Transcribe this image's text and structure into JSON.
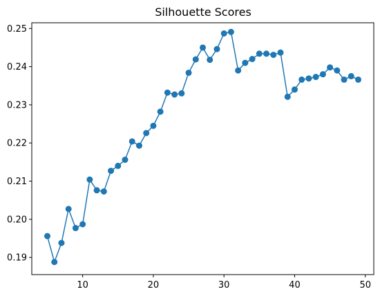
{
  "chart_data": {
    "type": "line",
    "title": "Silhouette Scores",
    "xlabel": "",
    "ylabel": "",
    "xlim": [
      2.8,
      51.2
    ],
    "ylim": [
      0.1855,
      0.2515
    ],
    "xticks": [
      10,
      20,
      30,
      40,
      50
    ],
    "yticks": [
      0.19,
      0.2,
      0.21,
      0.22,
      0.23,
      0.24,
      0.25
    ],
    "ytick_labels": [
      "0.19",
      "0.20",
      "0.21",
      "0.22",
      "0.23",
      "0.24",
      "0.25"
    ],
    "grid": false,
    "marker": "circle",
    "color": "#1f77b4",
    "series": [
      {
        "x": [
          5,
          6,
          7,
          8,
          9,
          10,
          11,
          12,
          13,
          14,
          15,
          16,
          17,
          18,
          19,
          20,
          21,
          22,
          23,
          24,
          25,
          26,
          27,
          28,
          29,
          30,
          31,
          32,
          33,
          34,
          35,
          36,
          37,
          38,
          39,
          40,
          41,
          42,
          43,
          44,
          45,
          46,
          47,
          48,
          49
        ],
        "values": [
          0.1956,
          0.1888,
          0.1938,
          0.2027,
          0.1977,
          0.1987,
          0.2104,
          0.2076,
          0.2073,
          0.2127,
          0.214,
          0.2156,
          0.2204,
          0.2193,
          0.2226,
          0.2245,
          0.2282,
          0.2332,
          0.2327,
          0.233,
          0.2384,
          0.2419,
          0.245,
          0.2418,
          0.2446,
          0.2487,
          0.2491,
          0.239,
          0.241,
          0.242,
          0.2434,
          0.2434,
          0.2431,
          0.2437,
          0.2321,
          0.234,
          0.2366,
          0.2369,
          0.2373,
          0.238,
          0.2398,
          0.239,
          0.2366,
          0.2375,
          0.2366
        ]
      }
    ]
  }
}
